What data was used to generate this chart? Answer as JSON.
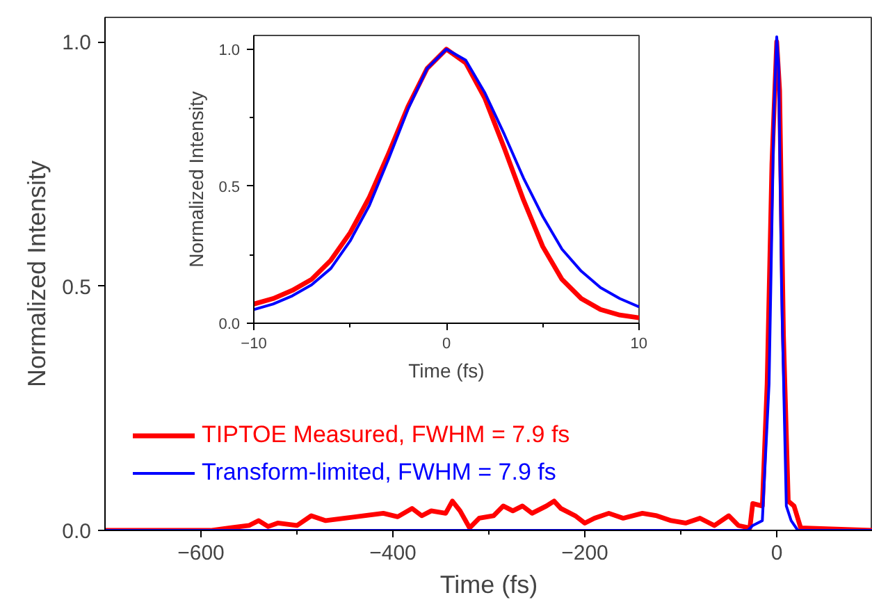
{
  "chart_data": [
    {
      "type": "line",
      "xlabel": "Time (fs)",
      "ylabel": "Normalized Intensity",
      "xlim": [
        -700,
        100
      ],
      "ylim": [
        0,
        1.05
      ],
      "xticks": [
        -600,
        {
          "value": -500,
          "label": null
        },
        -400,
        {
          "value": -300,
          "label": null
        },
        -200,
        {
          "value": -100,
          "label": null
        },
        0
      ],
      "yticks": [
        {
          "value": 0,
          "label": "0.0"
        },
        {
          "value": 0.5,
          "label": "0.5"
        },
        {
          "value": 1,
          "label": "1.0"
        }
      ],
      "grid": false,
      "legend": "bottom left",
      "marker": "none",
      "line_style": "solid",
      "series": [
        {
          "name": "TIPTOE Measured, FWHM = 7.9 fs",
          "color": "#ff0000",
          "x": [
            -700,
            -590,
            -570,
            -550,
            -540,
            -530,
            -520,
            -500,
            -485,
            -470,
            -450,
            -430,
            -410,
            -395,
            -380,
            -370,
            -360,
            -345,
            -338,
            -330,
            -320,
            -310,
            -295,
            -285,
            -275,
            -265,
            -255,
            -240,
            -232,
            -225,
            -210,
            -200,
            -190,
            -175,
            -160,
            -140,
            -125,
            -110,
            -95,
            -80,
            -65,
            -50,
            -40,
            -28,
            -25,
            -15,
            -10,
            -5,
            0,
            3,
            7,
            12,
            18,
            25,
            100
          ],
          "values": [
            0,
            0,
            0.005,
            0.01,
            0.02,
            0.008,
            0.015,
            0.01,
            0.03,
            0.02,
            0.025,
            0.03,
            0.035,
            0.028,
            0.045,
            0.03,
            0.04,
            0.035,
            0.06,
            0.04,
            0.005,
            0.025,
            0.03,
            0.05,
            0.04,
            0.05,
            0.035,
            0.05,
            0.06,
            0.045,
            0.03,
            0.015,
            0.025,
            0.035,
            0.025,
            0.035,
            0.03,
            0.02,
            0.015,
            0.025,
            0.01,
            0.03,
            0.01,
            0.005,
            0.055,
            0.05,
            0.3,
            0.75,
            1.0,
            0.9,
            0.4,
            0.06,
            0.05,
            0.005,
            0
          ]
        },
        {
          "name": "Transform-limited, FWHM = 7.9 fs",
          "color": "#0000ff",
          "x": [
            -700,
            -30,
            -25,
            -15,
            -8,
            -3,
            0,
            2,
            5,
            10,
            15,
            22,
            100
          ],
          "values": [
            0,
            0,
            0.01,
            0.02,
            0.3,
            0.85,
            1.01,
            0.95,
            0.5,
            0.05,
            0.02,
            0,
            0
          ]
        }
      ]
    },
    {
      "type": "line",
      "xlabel": "Time (fs)",
      "ylabel": "Normalized Intensity",
      "xlim": [
        -10,
        10
      ],
      "ylim": [
        0,
        1.05
      ],
      "xticks": [
        -10,
        {
          "value": -5,
          "label": null
        },
        0,
        {
          "value": 5,
          "label": null
        },
        10
      ],
      "yticks": [
        {
          "value": 0,
          "label": "0.0"
        },
        {
          "value": 0.25,
          "label": null
        },
        {
          "value": 0.5,
          "label": "0.5"
        },
        {
          "value": 0.75,
          "label": null
        },
        {
          "value": 1,
          "label": "1.0"
        }
      ],
      "grid": false,
      "marker": "none",
      "line_style": "solid",
      "series": [
        {
          "color": "#ff0000",
          "x": [
            -10,
            -9,
            -8,
            -7,
            -6,
            -5,
            -4,
            -3,
            -2,
            -1,
            0,
            1,
            2,
            3,
            4,
            5,
            6,
            7,
            8,
            9,
            10
          ],
          "values": [
            0.07,
            0.09,
            0.12,
            0.16,
            0.23,
            0.33,
            0.46,
            0.62,
            0.79,
            0.93,
            1.0,
            0.95,
            0.82,
            0.64,
            0.45,
            0.28,
            0.16,
            0.09,
            0.05,
            0.03,
            0.02
          ]
        },
        {
          "color": "#0000ff",
          "x": [
            -10,
            -9,
            -8,
            -7,
            -6,
            -5,
            -4,
            -3,
            -2,
            -1,
            0,
            1,
            2,
            3,
            4,
            5,
            6,
            7,
            8,
            9,
            10
          ],
          "values": [
            0.05,
            0.07,
            0.1,
            0.14,
            0.2,
            0.3,
            0.43,
            0.6,
            0.78,
            0.93,
            1.0,
            0.96,
            0.84,
            0.69,
            0.53,
            0.39,
            0.27,
            0.19,
            0.13,
            0.09,
            0.06
          ]
        }
      ]
    }
  ]
}
